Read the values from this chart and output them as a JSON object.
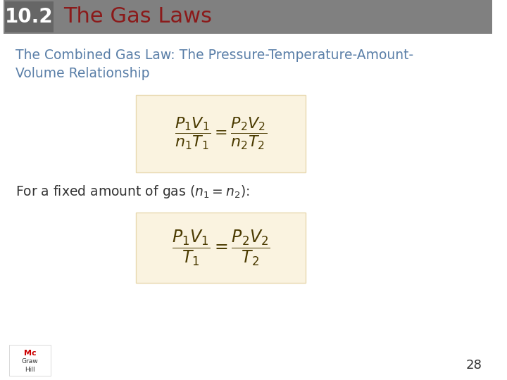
{
  "title_number": "10.2",
  "title_text": "The Gas Laws",
  "header_bg_color": "#808080",
  "header_text_color": "#ffffff",
  "title_color": "#8B1A1A",
  "subtitle_color": "#5a7fa8",
  "subtitle_line1": "The Combined Gas Law: The Pressure-Temperature-Amount-",
  "subtitle_line2": "Volume Relationship",
  "formula1": "\\dfrac{P_1V_1}{n_1T_1} = \\dfrac{P_2V_2}{n_2T_2}",
  "formula2": "\\dfrac{P_1V_1}{T_1} = \\dfrac{P_2V_2}{T_2}",
  "formula_box_color": "#faf3e0",
  "fixed_text_color": "#333333",
  "page_number": "28",
  "page_color": "#333333",
  "bg_color": "#ffffff"
}
